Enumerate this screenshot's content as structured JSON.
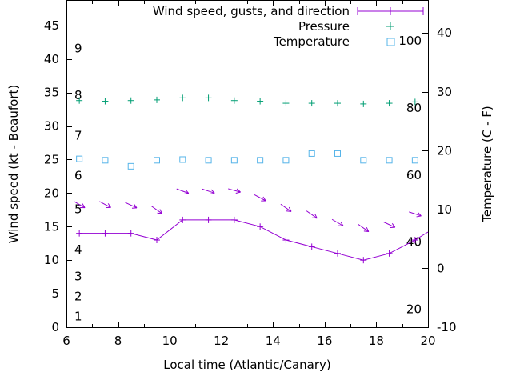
{
  "chart_data": {
    "type": "line",
    "title": "",
    "xlabel": "Local time (Atlantic/Canary)",
    "ylabel_left": "Wind speed (kt - Beaufort)",
    "ylabel_right": "Temperature (C - F)",
    "xlim": [
      6,
      20
    ],
    "ylim_left": [
      0,
      48.8
    ],
    "ylim_right": [
      -10,
      45.6
    ],
    "x_major_ticks": [
      6,
      8,
      10,
      12,
      14,
      16,
      18,
      20
    ],
    "x_minor_ticks": [
      7,
      9,
      11,
      13,
      15,
      17,
      19
    ],
    "left_ticks": [
      0,
      5,
      10,
      15,
      20,
      25,
      30,
      35,
      40,
      45
    ],
    "right_ticks": [
      -10,
      0,
      10,
      20,
      30,
      40
    ],
    "grid": false,
    "legend_position": "top-right-inside",
    "x": [
      6.5,
      7.5,
      8.5,
      9.5,
      10.5,
      11.5,
      12.5,
      13.5,
      14.5,
      15.5,
      16.5,
      17.5,
      18.5,
      19.5
    ],
    "series": [
      {
        "name": "Wind speed, gusts, and direction",
        "style": "errorlines",
        "marker": "plus",
        "color": "#9400d3",
        "axis": "left",
        "values": [
          14,
          14,
          14,
          13,
          16,
          16,
          16,
          15,
          13,
          12,
          11,
          10,
          11,
          13
        ]
      },
      {
        "name": "Pressure",
        "style": "points",
        "marker": "plus",
        "color": "#009e73",
        "axis": "left",
        "values": [
          33.8,
          33.7,
          33.8,
          33.9,
          34.2,
          34.2,
          33.8,
          33.7,
          33.4,
          33.4,
          33.4,
          33.3,
          33.4,
          33.6
        ]
      },
      {
        "name": "Temperature",
        "style": "points",
        "marker": "square",
        "color": "#56b4e9",
        "axis": "left",
        "values": [
          25.1,
          24.9,
          24.0,
          24.9,
          25.0,
          24.9,
          24.9,
          24.9,
          24.9,
          25.9,
          25.9,
          24.9,
          24.9,
          24.9
        ]
      }
    ],
    "wind_line_end": {
      "x": 20,
      "value": 14.2
    },
    "wind_arrows": [
      {
        "x": 6.5,
        "value": 18.3,
        "angle_deg": 30
      },
      {
        "x": 7.5,
        "value": 18.3,
        "angle_deg": 28
      },
      {
        "x": 8.5,
        "value": 18.2,
        "angle_deg": 25
      },
      {
        "x": 9.5,
        "value": 17.5,
        "angle_deg": 35
      },
      {
        "x": 10.5,
        "value": 20.3,
        "angle_deg": 20
      },
      {
        "x": 11.5,
        "value": 20.3,
        "angle_deg": 18
      },
      {
        "x": 12.5,
        "value": 20.4,
        "angle_deg": 15
      },
      {
        "x": 13.5,
        "value": 19.3,
        "angle_deg": 28
      },
      {
        "x": 14.5,
        "value": 17.8,
        "angle_deg": 35
      },
      {
        "x": 15.5,
        "value": 16.8,
        "angle_deg": 35
      },
      {
        "x": 16.5,
        "value": 15.6,
        "angle_deg": 30
      },
      {
        "x": 17.5,
        "value": 14.8,
        "angle_deg": 35
      },
      {
        "x": 18.5,
        "value": 15.3,
        "angle_deg": 25
      },
      {
        "x": 19.5,
        "value": 16.9,
        "angle_deg": 18
      }
    ],
    "beaufort_scale_labels": [
      {
        "label": "9",
        "kt": 41
      },
      {
        "label": "8",
        "kt": 34
      },
      {
        "label": "7",
        "kt": 28
      },
      {
        "label": "6",
        "kt": 22
      },
      {
        "label": "5",
        "kt": 17
      },
      {
        "label": "4",
        "kt": 11
      },
      {
        "label": "3",
        "kt": 7
      },
      {
        "label": "2",
        "kt": 4
      },
      {
        "label": "1",
        "kt": 1
      }
    ],
    "inner_right_scale_labels": [
      {
        "label": "100",
        "kt": 42.1
      },
      {
        "label": "80",
        "kt": 32.1
      },
      {
        "label": "60",
        "kt": 22.1
      },
      {
        "label": "40",
        "kt": 12.1
      },
      {
        "label": "20",
        "kt": 2.1
      }
    ],
    "axis_color": "#000000",
    "background": "#ffffff"
  }
}
